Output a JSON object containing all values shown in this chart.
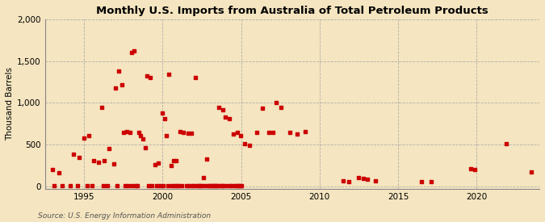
{
  "title": "Monthly U.S. Imports from Australia of Total Petroleum Products",
  "ylabel": "Thousand Barrels",
  "source": "Source: U.S. Energy Information Administration",
  "background_color": "#f5e5c0",
  "plot_bg_color": "#f5e5c0",
  "marker_color": "#cc0000",
  "marker_size": 9,
  "xlim": [
    1992.5,
    2024.0
  ],
  "ylim": [
    -30,
    2000
  ],
  "yticks": [
    0,
    500,
    1000,
    1500,
    2000
  ],
  "xticks": [
    1995,
    2000,
    2005,
    2010,
    2015,
    2020
  ],
  "data": [
    [
      1993.0,
      200
    ],
    [
      1993.4,
      165
    ],
    [
      1994.3,
      385
    ],
    [
      1994.7,
      350
    ],
    [
      1995.0,
      580
    ],
    [
      1995.3,
      610
    ],
    [
      1995.6,
      305
    ],
    [
      1995.9,
      285
    ],
    [
      1996.1,
      950
    ],
    [
      1996.3,
      305
    ],
    [
      1996.6,
      450
    ],
    [
      1996.9,
      265
    ],
    [
      1997.0,
      1180
    ],
    [
      1997.2,
      1385
    ],
    [
      1997.4,
      1215
    ],
    [
      1997.5,
      650
    ],
    [
      1997.7,
      660
    ],
    [
      1997.9,
      645
    ],
    [
      1998.0,
      1600
    ],
    [
      1998.2,
      1625
    ],
    [
      1998.5,
      650
    ],
    [
      1998.6,
      610
    ],
    [
      1998.75,
      570
    ],
    [
      1998.9,
      460
    ],
    [
      1999.0,
      1325
    ],
    [
      1999.2,
      1305
    ],
    [
      1999.5,
      255
    ],
    [
      1999.7,
      275
    ],
    [
      2000.0,
      880
    ],
    [
      2000.15,
      815
    ],
    [
      2000.25,
      605
    ],
    [
      2000.4,
      1340
    ],
    [
      2000.55,
      245
    ],
    [
      2000.7,
      305
    ],
    [
      2000.85,
      305
    ],
    [
      2001.1,
      660
    ],
    [
      2001.3,
      650
    ],
    [
      2001.6,
      640
    ],
    [
      2001.85,
      635
    ],
    [
      2002.1,
      1305
    ],
    [
      2002.6,
      105
    ],
    [
      2002.8,
      330
    ],
    [
      2003.6,
      950
    ],
    [
      2003.85,
      920
    ],
    [
      2004.0,
      825
    ],
    [
      2004.25,
      815
    ],
    [
      2004.5,
      625
    ],
    [
      2004.75,
      645
    ],
    [
      2004.95,
      605
    ],
    [
      2005.25,
      515
    ],
    [
      2005.55,
      495
    ],
    [
      2006.0,
      650
    ],
    [
      2006.35,
      940
    ],
    [
      2006.75,
      645
    ],
    [
      2007.0,
      645
    ],
    [
      2007.25,
      1005
    ],
    [
      2007.55,
      945
    ],
    [
      2008.1,
      645
    ],
    [
      2008.55,
      625
    ],
    [
      2009.1,
      655
    ],
    [
      2011.5,
      65
    ],
    [
      2011.85,
      60
    ],
    [
      2012.5,
      105
    ],
    [
      2012.8,
      95
    ],
    [
      2013.05,
      85
    ],
    [
      2013.55,
      70
    ],
    [
      2016.5,
      60
    ],
    [
      2017.1,
      55
    ],
    [
      2019.6,
      215
    ],
    [
      2019.9,
      205
    ],
    [
      2021.9,
      510
    ],
    [
      2023.5,
      170
    ],
    [
      1993.1,
      5
    ],
    [
      1993.6,
      5
    ],
    [
      1994.1,
      5
    ],
    [
      1994.6,
      5
    ],
    [
      1995.2,
      5
    ],
    [
      1995.5,
      5
    ],
    [
      1996.2,
      5
    ],
    [
      1996.5,
      5
    ],
    [
      1997.1,
      5
    ],
    [
      1997.6,
      5
    ],
    [
      1997.8,
      5
    ],
    [
      1998.1,
      5
    ],
    [
      1998.3,
      5
    ],
    [
      1998.4,
      5
    ],
    [
      1999.1,
      5
    ],
    [
      1999.3,
      5
    ],
    [
      1999.6,
      5
    ],
    [
      1999.8,
      5
    ],
    [
      2000.05,
      5
    ],
    [
      2000.35,
      5
    ],
    [
      2000.6,
      5
    ],
    [
      2000.75,
      5
    ],
    [
      2000.9,
      5
    ],
    [
      2001.0,
      5
    ],
    [
      2001.2,
      5
    ],
    [
      2001.5,
      5
    ],
    [
      2001.7,
      5
    ],
    [
      2001.9,
      5
    ],
    [
      2002.0,
      5
    ],
    [
      2002.2,
      5
    ],
    [
      2002.3,
      5
    ],
    [
      2002.4,
      5
    ],
    [
      2002.5,
      5
    ],
    [
      2002.7,
      5
    ],
    [
      2002.9,
      5
    ],
    [
      2003.0,
      5
    ],
    [
      2003.1,
      5
    ],
    [
      2003.2,
      5
    ],
    [
      2003.3,
      5
    ],
    [
      2003.4,
      5
    ],
    [
      2003.5,
      5
    ],
    [
      2003.7,
      5
    ],
    [
      2003.8,
      5
    ],
    [
      2003.9,
      5
    ],
    [
      2004.1,
      5
    ],
    [
      2004.3,
      5
    ],
    [
      2004.4,
      5
    ],
    [
      2004.6,
      5
    ],
    [
      2004.7,
      5
    ],
    [
      2004.8,
      5
    ],
    [
      2004.9,
      5
    ],
    [
      2005.0,
      5
    ]
  ]
}
